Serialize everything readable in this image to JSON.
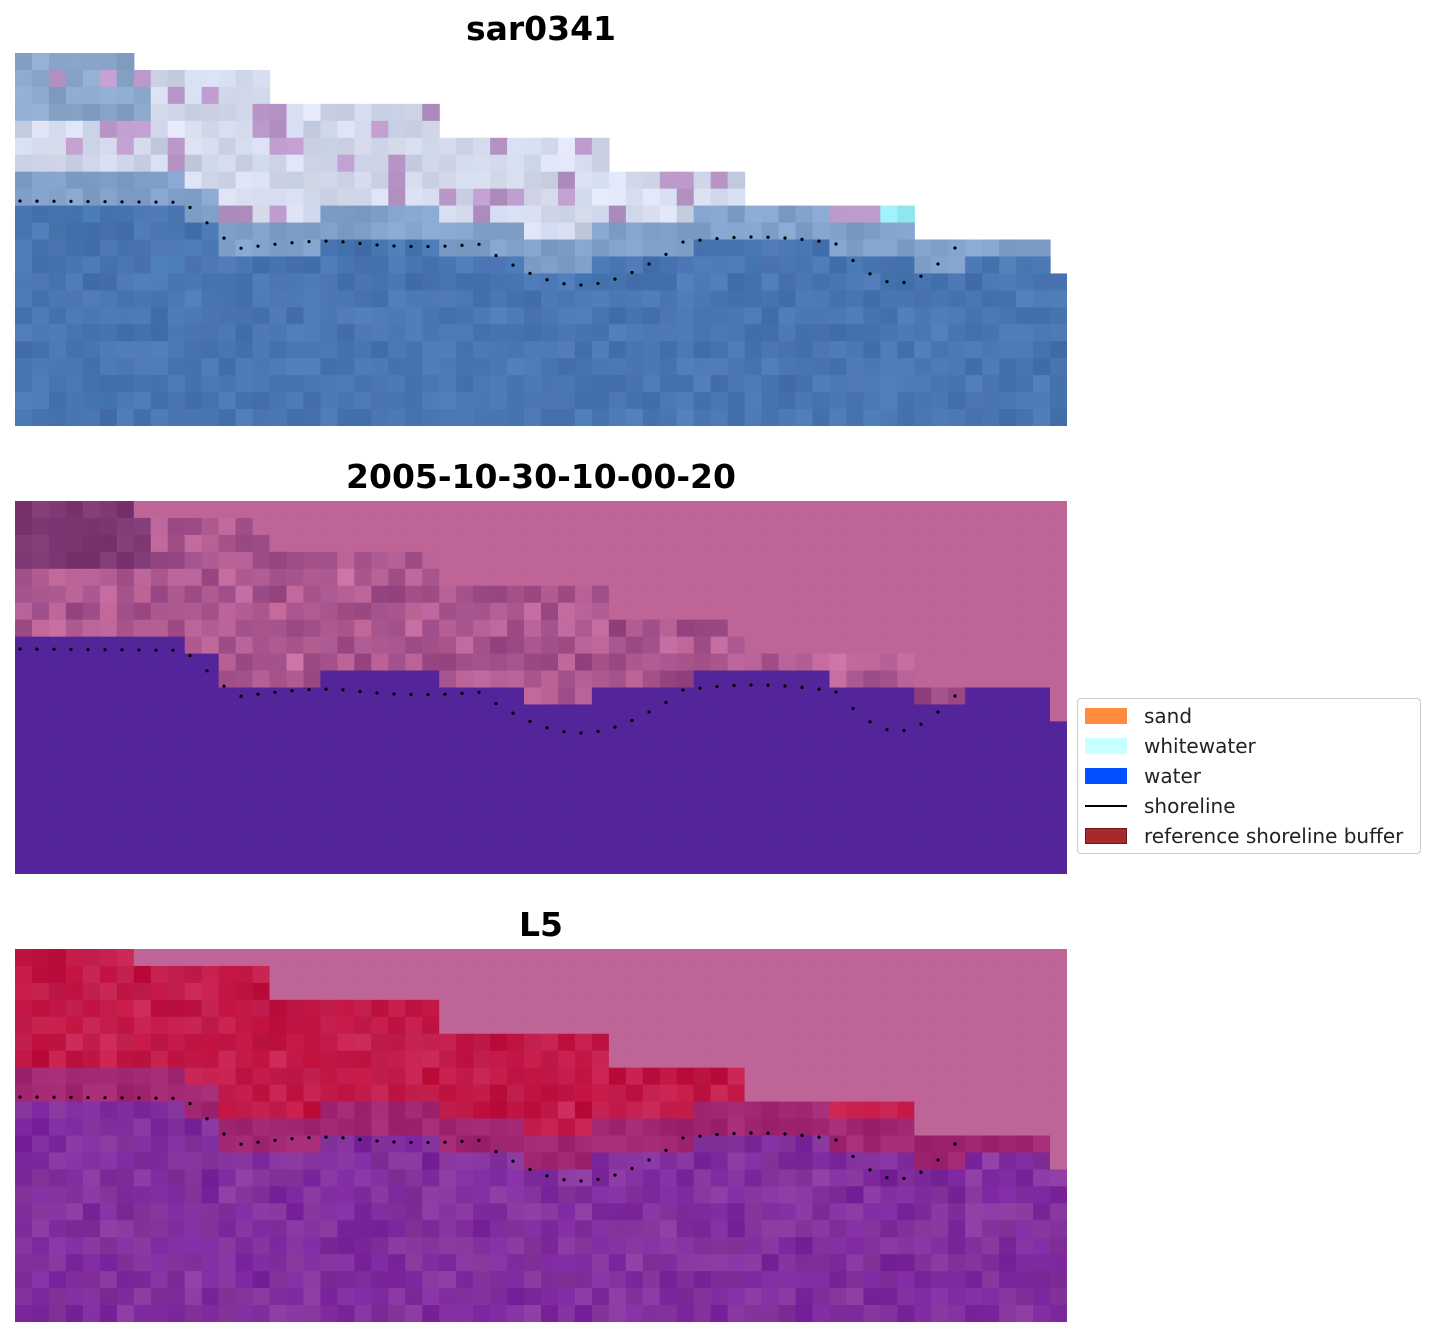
{
  "panels": [
    {
      "id": "rgb",
      "title": "sar0341"
    },
    {
      "id": "classified",
      "title": "2005-10-30-10-00-20"
    },
    {
      "id": "index",
      "title": "L5"
    }
  ],
  "legend": {
    "items": [
      {
        "label": "sand",
        "color": "#ff8c3c",
        "kind": "patch"
      },
      {
        "label": "whitewater",
        "color": "#c8ffff",
        "kind": "patch"
      },
      {
        "label": "water",
        "color": "#0050ff",
        "kind": "patch"
      },
      {
        "label": "shoreline",
        "color": "#000000",
        "kind": "line"
      },
      {
        "label": "reference shoreline buffer",
        "color": "#a52a2a",
        "kind": "patch"
      }
    ]
  },
  "colors": {
    "rgb_water": "#4a7ab5",
    "rgb_beach": "#c9d2e6",
    "class_land": "#be6496",
    "class_water": "#53249a",
    "index_land": "#be6496",
    "index_high": "#c0103e",
    "index_low": "#8a3a9e"
  }
}
